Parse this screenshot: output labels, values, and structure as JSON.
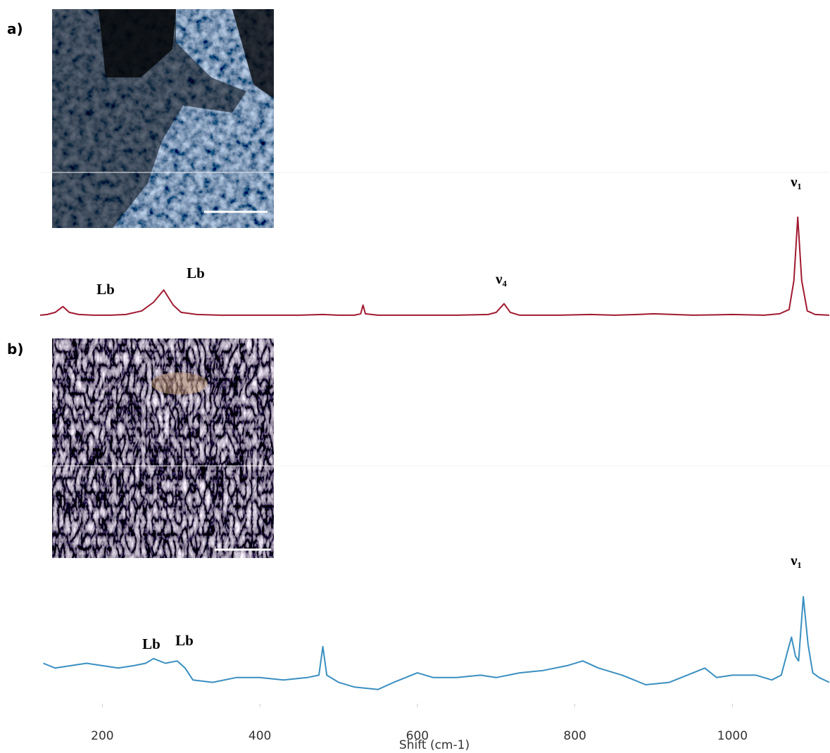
{
  "chart_data": [
    {
      "type": "line",
      "panel_label": "a)",
      "x": [
        121,
        130,
        140,
        150,
        158,
        170,
        190,
        210,
        230,
        250,
        265,
        278,
        290,
        300,
        320,
        350,
        400,
        450,
        480,
        500,
        520,
        528,
        531,
        534,
        550,
        600,
        650,
        690,
        700,
        710,
        718,
        730,
        780,
        820,
        850,
        880,
        900,
        950,
        1000,
        1040,
        1060,
        1072,
        1078,
        1083,
        1088,
        1095,
        1105,
        1123
      ],
      "series": [
        {
          "color": "#a01a30",
          "values": [
            1,
            1.5,
            3,
            7,
            3,
            1.5,
            1,
            1,
            1.5,
            4,
            10,
            18.5,
            8,
            3,
            1.5,
            1,
            1,
            1,
            1.5,
            1,
            1,
            2,
            8,
            2,
            1,
            1,
            1,
            1.5,
            3,
            9,
            3,
            1,
            1,
            1.5,
            1,
            1.5,
            2,
            1,
            1.5,
            1,
            2,
            5,
            25,
            69,
            25,
            4,
            1.5,
            1
          ]
        }
      ],
      "xlim": [
        121,
        1123
      ],
      "ylim": [
        0,
        100
      ],
      "annotations": [
        "Lb",
        "Lb",
        "ν₄",
        "ν₁"
      ]
    },
    {
      "type": "line",
      "panel_label": "b)",
      "x": [
        125,
        140,
        160,
        180,
        200,
        220,
        240,
        255,
        265,
        280,
        295,
        305,
        315,
        340,
        370,
        400,
        430,
        460,
        475,
        480,
        485,
        500,
        520,
        550,
        570,
        600,
        620,
        650,
        680,
        700,
        730,
        760,
        790,
        810,
        830,
        860,
        890,
        920,
        950,
        965,
        980,
        1000,
        1030,
        1050,
        1062,
        1070,
        1075,
        1080,
        1084,
        1090,
        1096,
        1102,
        1110,
        1123
      ],
      "series": [
        {
          "color": "#3a8fc1",
          "values": [
            17,
            15,
            16,
            17,
            16,
            15,
            16,
            17,
            19,
            17,
            18,
            15,
            10,
            9,
            11,
            11,
            10,
            11,
            12,
            24,
            12,
            9,
            7,
            6,
            9,
            13,
            11,
            11,
            12,
            11,
            13,
            14,
            16,
            18,
            15,
            12,
            8,
            9,
            13,
            15,
            11,
            12,
            12,
            10,
            12,
            22,
            28,
            20,
            18,
            45,
            25,
            13,
            11,
            9
          ]
        }
      ],
      "xlim": [
        121,
        1123
      ],
      "ylim": [
        0,
        100
      ],
      "xticks": [
        200,
        400,
        600,
        800,
        1000
      ],
      "xlabel": "Shift (cm-1)",
      "annotations": [
        "Lb",
        "Lb",
        "ν₁"
      ]
    }
  ]
}
